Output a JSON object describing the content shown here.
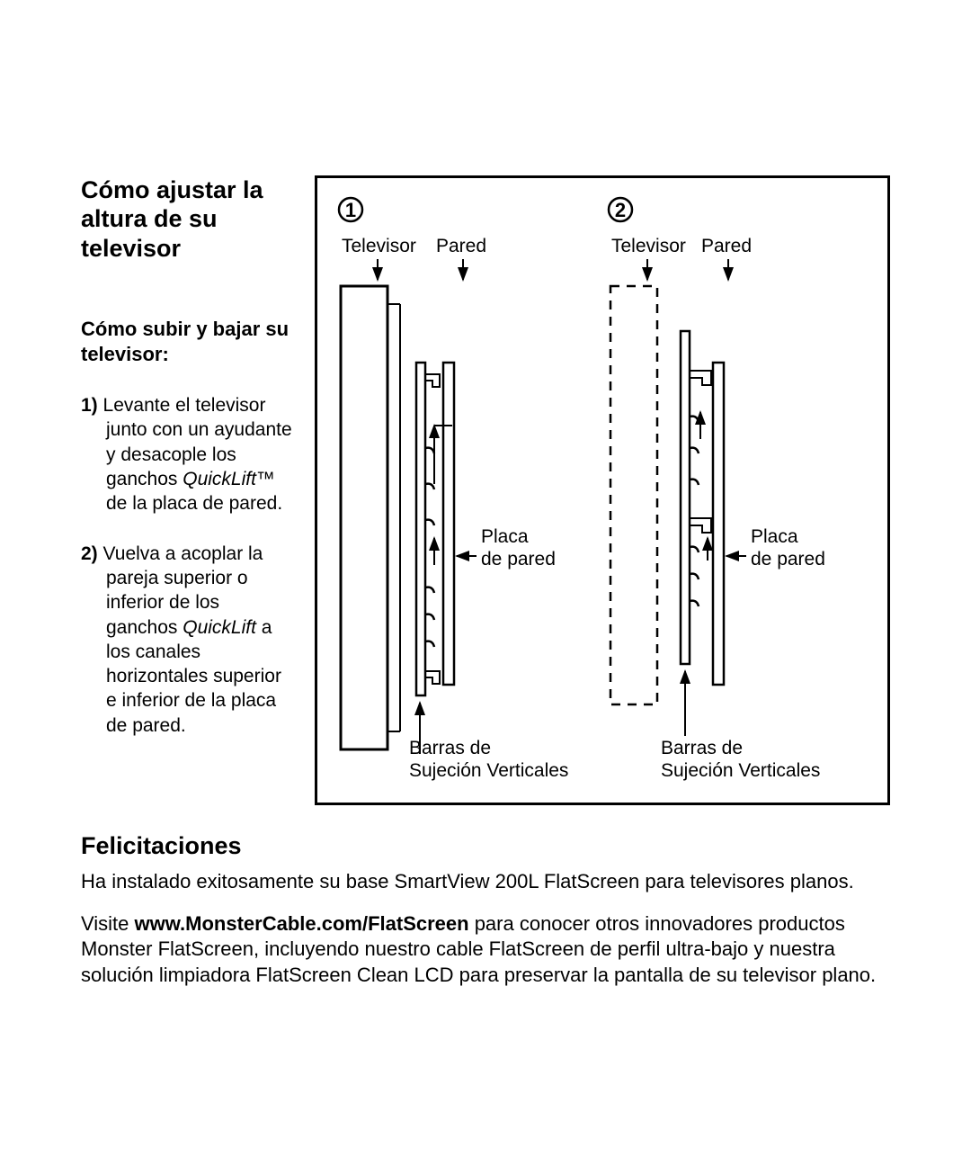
{
  "title": "Cómo ajustar la altura de su televisor",
  "subtitle": "Cómo subir y bajar su televisor:",
  "steps": [
    {
      "num": "1)",
      "html": "Levante el televisor junto con un ayudante y desacople los ganchos <em>QuickLift™</em> de la placa de pared."
    },
    {
      "num": "2)",
      "html": "Vuelva a acoplar la pareja superior o inferior de los ganchos <em>QuickLift</em> a los canales horizontales superior e inferior de la placa de pared."
    }
  ],
  "diagram": {
    "step1": "1",
    "step2": "2",
    "label_televisor": "Televisor",
    "label_pared": "Pared",
    "label_placa_de_pared_l1": "Placa",
    "label_placa_de_pared_l2": "de pared",
    "label_barras_l1": "Barras de",
    "label_barras_l2": "Sujeción Verticales",
    "colors": {
      "stroke": "#000000",
      "fill": "#ffffff"
    }
  },
  "congrats": {
    "title": "Felicitaciones",
    "p1": "Ha instalado exitosamente su base SmartView 200L FlatScreen para televisores planos.",
    "p2_before": "Visite ",
    "p2_bold": "www.MonsterCable.com/FlatScreen",
    "p2_after": " para conocer otros innovadores productos Monster FlatScreen, incluyendo nuestro cable FlatScreen de perfil ultra-bajo y nuestra solución limpiadora FlatScreen Clean LCD para preservar la pantalla de su televisor plano."
  }
}
